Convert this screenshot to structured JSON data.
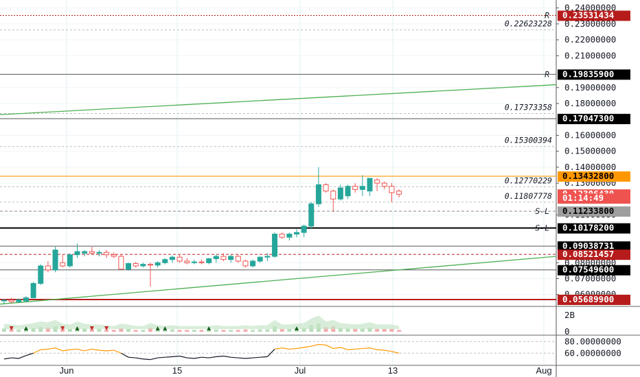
{
  "colors": {
    "bull": "#26a69a",
    "bear": "#ef5350",
    "green_line": "#4caf50",
    "orange": "#ff9800",
    "dark_red": "#b71c1c",
    "black": "#000000",
    "grey": "#787b86"
  },
  "axis": {
    "ticks": [
      "0.24000000",
      "0.23000000",
      "0.22000000",
      "0.21000000",
      "0.19000000",
      "0.18000000",
      "0.16000000",
      "0.15000000",
      "0.14000000",
      "0.13000000",
      "0.11000000",
      "0.08000000",
      "0.07000000",
      "0.06000000"
    ],
    "tick_values": [
      0.24,
      0.23,
      0.22,
      0.21,
      0.19,
      0.18,
      0.16,
      0.15,
      0.14,
      0.13,
      0.11,
      0.08,
      0.07,
      0.06
    ],
    "volume_ticks": [
      "2B",
      "0"
    ],
    "osc_ticks": [
      "80.00000000",
      "60.00000000"
    ]
  },
  "x_ticks": [
    "Jun",
    "15",
    "Jul",
    "13",
    "Aug"
  ],
  "price_tags": [
    {
      "text": "0.23531434",
      "value": 0.23531434,
      "bg": "#b71c1c",
      "fg": "#ffffff",
      "line": "red-dotted",
      "marker": "R"
    },
    {
      "text": "0.19835900",
      "value": 0.198359,
      "bg": "#000000",
      "fg": "#ffffff",
      "line": "grey",
      "marker": "R"
    },
    {
      "text": "0.17047300",
      "value": 0.170473,
      "bg": "#000000",
      "fg": "#ffffff",
      "line": "grey"
    },
    {
      "text": "0.13432800",
      "value": 0.134328,
      "bg": "#ff9800",
      "fg": "#000000",
      "line": "orange"
    },
    {
      "text": "0.12306430",
      "value": 0.1230643,
      "bg": "#ef5350",
      "fg": "#ffffff",
      "line": "none"
    },
    {
      "text": "01:14:49",
      "value": 0.1205,
      "bg": "#ef5350",
      "fg": "#ffffff",
      "line": "none"
    },
    {
      "text": "0.11233800",
      "value": 0.112338,
      "bg": "#9e9e9e",
      "fg": "#000000",
      "line": "dark-grey-dashed",
      "marker": "S-L"
    },
    {
      "text": "0.10178200",
      "value": 0.101782,
      "bg": "#000000",
      "fg": "#ffffff",
      "line": "black-thick",
      "marker": "S-L"
    },
    {
      "text": "0.09038731",
      "value": 0.09038731,
      "bg": "#000000",
      "fg": "#ffffff",
      "line": "grey"
    },
    {
      "text": "0.08521457",
      "value": 0.08521457,
      "bg": "#b71c1c",
      "fg": "#ffffff",
      "line": "red-dashed"
    },
    {
      "text": "0.07549600",
      "value": 0.075496,
      "bg": "#000000",
      "fg": "#ffffff",
      "line": "grey"
    },
    {
      "text": "0.05689900",
      "value": 0.056899,
      "bg": "#b71c1c",
      "fg": "#ffffff",
      "line": "darkred-thick"
    }
  ],
  "floating_labels": [
    {
      "text": "0.22623228",
      "value": 0.22623228
    },
    {
      "text": "0.17373358",
      "value": 0.17373358
    },
    {
      "text": "0.15300394",
      "value": 0.15300394
    },
    {
      "text": "0.12770229",
      "value": 0.12770229
    },
    {
      "text": "0.11807778",
      "value": 0.11807778
    }
  ],
  "chart_data": {
    "type": "candlestick",
    "x_labels": [
      "Jun",
      "15",
      "Jul",
      "13",
      "Aug"
    ],
    "y_range": [
      0.053,
      0.245
    ],
    "candles": [
      {
        "o": 0.056,
        "h": 0.057,
        "l": 0.054,
        "c": 0.0565
      },
      {
        "o": 0.0565,
        "h": 0.058,
        "l": 0.0545,
        "c": 0.0555
      },
      {
        "o": 0.0555,
        "h": 0.0575,
        "l": 0.055,
        "c": 0.0568
      },
      {
        "o": 0.056,
        "h": 0.059,
        "l": 0.0555,
        "c": 0.058
      },
      {
        "o": 0.058,
        "h": 0.068,
        "l": 0.0575,
        "c": 0.067
      },
      {
        "o": 0.067,
        "h": 0.079,
        "l": 0.066,
        "c": 0.078
      },
      {
        "o": 0.078,
        "h": 0.081,
        "l": 0.074,
        "c": 0.0755
      },
      {
        "o": 0.0755,
        "h": 0.09,
        "l": 0.074,
        "c": 0.088
      },
      {
        "o": 0.08,
        "h": 0.085,
        "l": 0.077,
        "c": 0.078
      },
      {
        "o": 0.078,
        "h": 0.086,
        "l": 0.077,
        "c": 0.085
      },
      {
        "o": 0.085,
        "h": 0.092,
        "l": 0.083,
        "c": 0.087
      },
      {
        "o": 0.086,
        "h": 0.088,
        "l": 0.084,
        "c": 0.087
      },
      {
        "o": 0.087,
        "h": 0.09,
        "l": 0.085,
        "c": 0.086
      },
      {
        "o": 0.086,
        "h": 0.088,
        "l": 0.084,
        "c": 0.0865
      },
      {
        "o": 0.0865,
        "h": 0.088,
        "l": 0.083,
        "c": 0.085
      },
      {
        "o": 0.085,
        "h": 0.0865,
        "l": 0.083,
        "c": 0.084
      },
      {
        "o": 0.084,
        "h": 0.085,
        "l": 0.076,
        "c": 0.076
      },
      {
        "o": 0.076,
        "h": 0.08,
        "l": 0.075,
        "c": 0.0795
      },
      {
        "o": 0.0795,
        "h": 0.0805,
        "l": 0.077,
        "c": 0.078
      },
      {
        "o": 0.078,
        "h": 0.08,
        "l": 0.077,
        "c": 0.079
      },
      {
        "o": 0.079,
        "h": 0.08,
        "l": 0.065,
        "c": 0.0785
      },
      {
        "o": 0.0785,
        "h": 0.081,
        "l": 0.077,
        "c": 0.08
      },
      {
        "o": 0.08,
        "h": 0.083,
        "l": 0.079,
        "c": 0.082
      },
      {
        "o": 0.082,
        "h": 0.0845,
        "l": 0.08,
        "c": 0.0835
      },
      {
        "o": 0.0835,
        "h": 0.085,
        "l": 0.08,
        "c": 0.081
      },
      {
        "o": 0.081,
        "h": 0.083,
        "l": 0.079,
        "c": 0.08
      },
      {
        "o": 0.08,
        "h": 0.082,
        "l": 0.079,
        "c": 0.0805
      },
      {
        "o": 0.0805,
        "h": 0.082,
        "l": 0.079,
        "c": 0.08
      },
      {
        "o": 0.08,
        "h": 0.083,
        "l": 0.079,
        "c": 0.0825
      },
      {
        "o": 0.0825,
        "h": 0.085,
        "l": 0.08,
        "c": 0.084
      },
      {
        "o": 0.084,
        "h": 0.086,
        "l": 0.081,
        "c": 0.082
      },
      {
        "o": 0.082,
        "h": 0.085,
        "l": 0.08,
        "c": 0.084
      },
      {
        "o": 0.084,
        "h": 0.085,
        "l": 0.08,
        "c": 0.081
      },
      {
        "o": 0.081,
        "h": 0.082,
        "l": 0.077,
        "c": 0.078
      },
      {
        "o": 0.078,
        "h": 0.082,
        "l": 0.077,
        "c": 0.081
      },
      {
        "o": 0.081,
        "h": 0.084,
        "l": 0.08,
        "c": 0.0835
      },
      {
        "o": 0.0835,
        "h": 0.086,
        "l": 0.081,
        "c": 0.084
      },
      {
        "o": 0.084,
        "h": 0.099,
        "l": 0.083,
        "c": 0.098
      },
      {
        "o": 0.098,
        "h": 0.099,
        "l": 0.095,
        "c": 0.096
      },
      {
        "o": 0.096,
        "h": 0.099,
        "l": 0.094,
        "c": 0.098
      },
      {
        "o": 0.098,
        "h": 0.101,
        "l": 0.096,
        "c": 0.099
      },
      {
        "o": 0.099,
        "h": 0.104,
        "l": 0.096,
        "c": 0.103
      },
      {
        "o": 0.103,
        "h": 0.118,
        "l": 0.101,
        "c": 0.117
      },
      {
        "o": 0.117,
        "h": 0.14,
        "l": 0.115,
        "c": 0.129
      },
      {
        "o": 0.129,
        "h": 0.13,
        "l": 0.124,
        "c": 0.125
      },
      {
        "o": 0.125,
        "h": 0.126,
        "l": 0.112,
        "c": 0.12
      },
      {
        "o": 0.12,
        "h": 0.129,
        "l": 0.119,
        "c": 0.127
      },
      {
        "o": 0.122,
        "h": 0.129,
        "l": 0.12,
        "c": 0.128
      },
      {
        "o": 0.128,
        "h": 0.13,
        "l": 0.124,
        "c": 0.126
      },
      {
        "o": 0.126,
        "h": 0.135,
        "l": 0.122,
        "c": 0.128
      },
      {
        "o": 0.125,
        "h": 0.132,
        "l": 0.122,
        "c": 0.133
      },
      {
        "o": 0.132,
        "h": 0.133,
        "l": 0.125,
        "c": 0.13
      },
      {
        "o": 0.13,
        "h": 0.131,
        "l": 0.126,
        "c": 0.128
      },
      {
        "o": 0.128,
        "h": 0.13,
        "l": 0.118,
        "c": 0.124
      },
      {
        "o": 0.125,
        "h": 0.126,
        "l": 0.121,
        "c": 0.123
      }
    ],
    "trend_lines": [
      {
        "from": [
          0,
          0.173
        ],
        "to": [
          1,
          0.1918
        ]
      },
      {
        "from": [
          0,
          0.054
        ],
        "to": [
          1,
          0.084
        ]
      }
    ],
    "volume": [
      0.35,
      0.3,
      0.25,
      0.3,
      0.4,
      0.5,
      0.45,
      0.6,
      0.35,
      0.3,
      0.5,
      0.35,
      0.3,
      0.3,
      0.25,
      0.2,
      0.35,
      0.3,
      0.2,
      0.2,
      0.4,
      0.25,
      0.2,
      0.25,
      0.2,
      0.2,
      0.2,
      0.2,
      0.2,
      0.25,
      0.2,
      0.2,
      0.2,
      0.25,
      0.2,
      0.25,
      0.25,
      0.6,
      0.3,
      0.3,
      0.35,
      0.4,
      0.7,
      0.9,
      0.5,
      0.6,
      0.4,
      0.35,
      0.3,
      0.35,
      0.45,
      0.3,
      0.3,
      0.3,
      0.2
    ],
    "oscillator": [
      50,
      52,
      51,
      56,
      60,
      66,
      67,
      69,
      64,
      66,
      67,
      64,
      67,
      65,
      64,
      65,
      60,
      53,
      52,
      50,
      49,
      52,
      53,
      54,
      55,
      52,
      51,
      53,
      52,
      54,
      55,
      53,
      52,
      51,
      52,
      53,
      54,
      67,
      69,
      67,
      68,
      70,
      72,
      75,
      74,
      68,
      70,
      66,
      67,
      68,
      69,
      66,
      65,
      63,
      60
    ]
  }
}
